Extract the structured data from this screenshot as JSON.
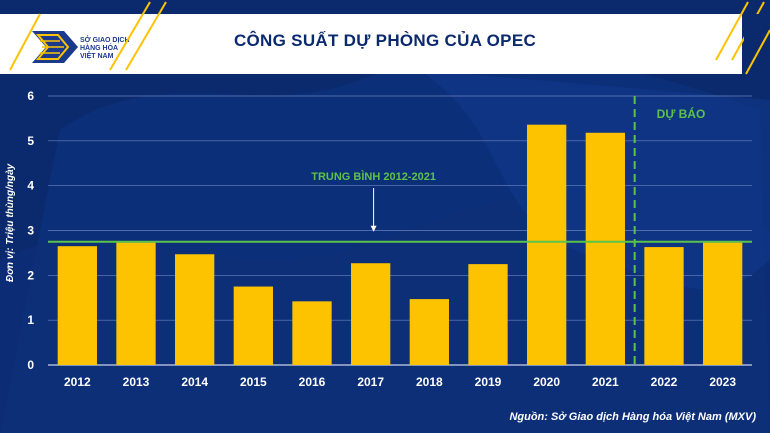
{
  "header": {
    "title": "CÔNG SUẤT DỰ PHÒNG CỦA OPEC",
    "logo_lines": [
      "SỞ GIAO DỊCH",
      "HÀNG HÓA",
      "VIỆT NAM"
    ]
  },
  "chart_data": {
    "type": "bar",
    "title": "CÔNG SUẤT DỰ PHÒNG CỦA OPEC",
    "ylabel": "Đơn vị: Triệu thùng/ngày",
    "xlabel": "",
    "categories": [
      "2012",
      "2013",
      "2014",
      "2015",
      "2016",
      "2017",
      "2018",
      "2019",
      "2020",
      "2021",
      "2022",
      "2023"
    ],
    "values": [
      2.65,
      2.73,
      2.47,
      1.75,
      1.42,
      2.27,
      1.47,
      2.25,
      5.36,
      5.18,
      2.63,
      2.73
    ],
    "ylim": [
      0,
      6
    ],
    "yticks": [
      "0",
      "1",
      "2",
      "3",
      "4",
      "5",
      "6"
    ],
    "grid": true,
    "bar_color": "#fdc300",
    "average": {
      "label": "TRUNG BÌNH 2012-2021",
      "value": 2.75,
      "color": "#5cc34a"
    },
    "forecast": {
      "label": "DỰ BÁO",
      "starts_after": "2021",
      "color": "#5cc34a"
    }
  },
  "footer": {
    "source": "Nguồn: Sở Giao dịch Hàng hóa Việt Nam (MXV)"
  }
}
